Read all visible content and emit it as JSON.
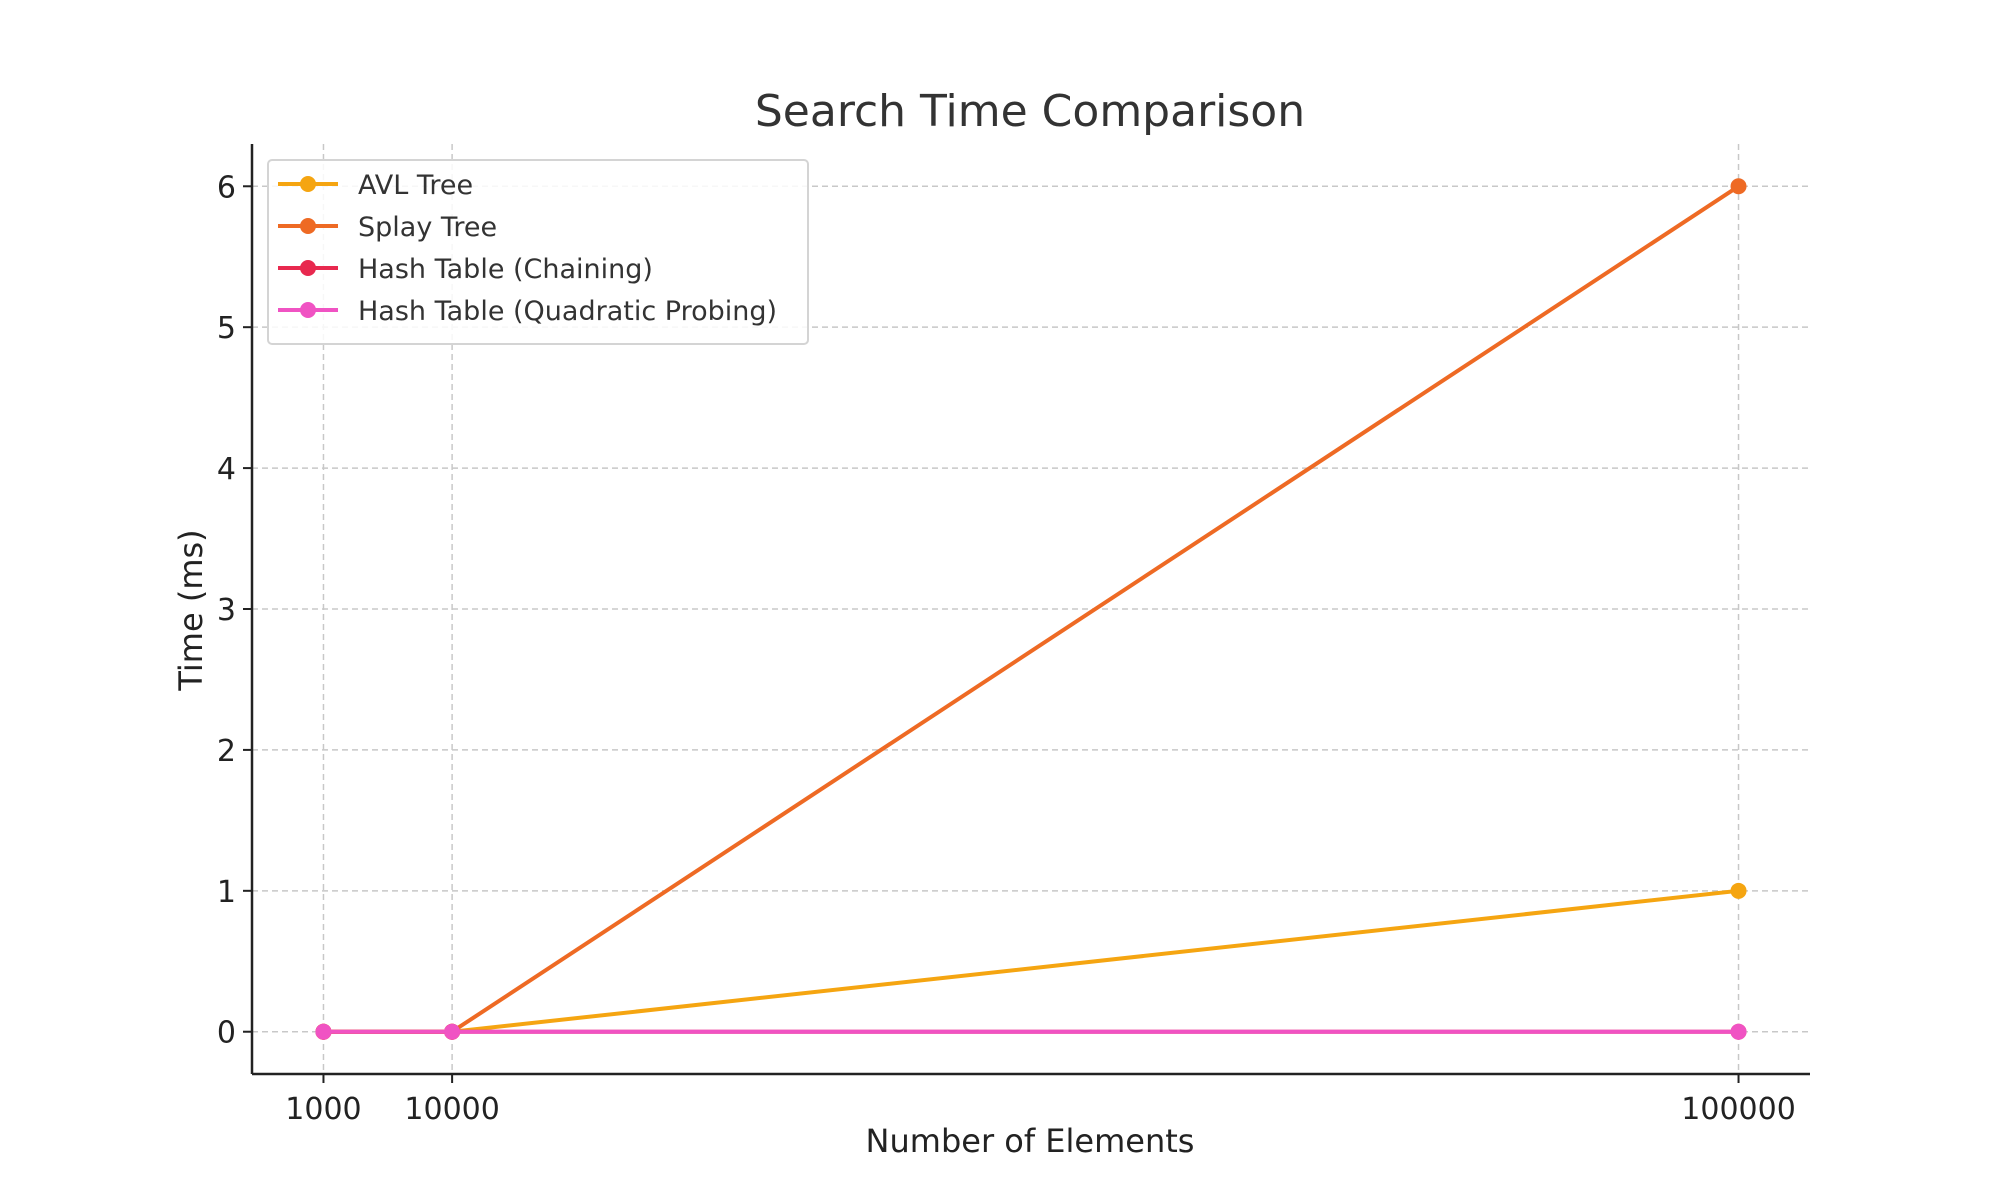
{
  "chart_data": {
    "type": "line",
    "title": "Search Time Comparison",
    "xlabel": "Number of Elements",
    "ylabel": "Time (ms)",
    "x": [
      1000,
      10000,
      100000
    ],
    "xticks": [
      1000,
      10000,
      100000
    ],
    "xtick_labels": [
      "1000",
      "10000",
      "100000"
    ],
    "xlim": [
      -4000,
      105000
    ],
    "yticks": [
      0,
      1,
      2,
      3,
      4,
      5,
      6
    ],
    "ytick_labels": [
      "0",
      "1",
      "2",
      "3",
      "4",
      "5",
      "6"
    ],
    "ylim": [
      -0.3,
      6.3
    ],
    "grid": true,
    "legend_position": "upper-left",
    "series": [
      {
        "name": "AVL Tree",
        "values": [
          0,
          0,
          1
        ],
        "color": "#F5A511"
      },
      {
        "name": "Splay Tree",
        "values": [
          0,
          0,
          6
        ],
        "color": "#EE6A24"
      },
      {
        "name": "Hash Table (Chaining)",
        "values": [
          0,
          0,
          0
        ],
        "color": "#E8294F"
      },
      {
        "name": "Hash Table (Quadratic Probing)",
        "values": [
          0,
          0,
          0
        ],
        "color": "#F053C3"
      }
    ]
  }
}
